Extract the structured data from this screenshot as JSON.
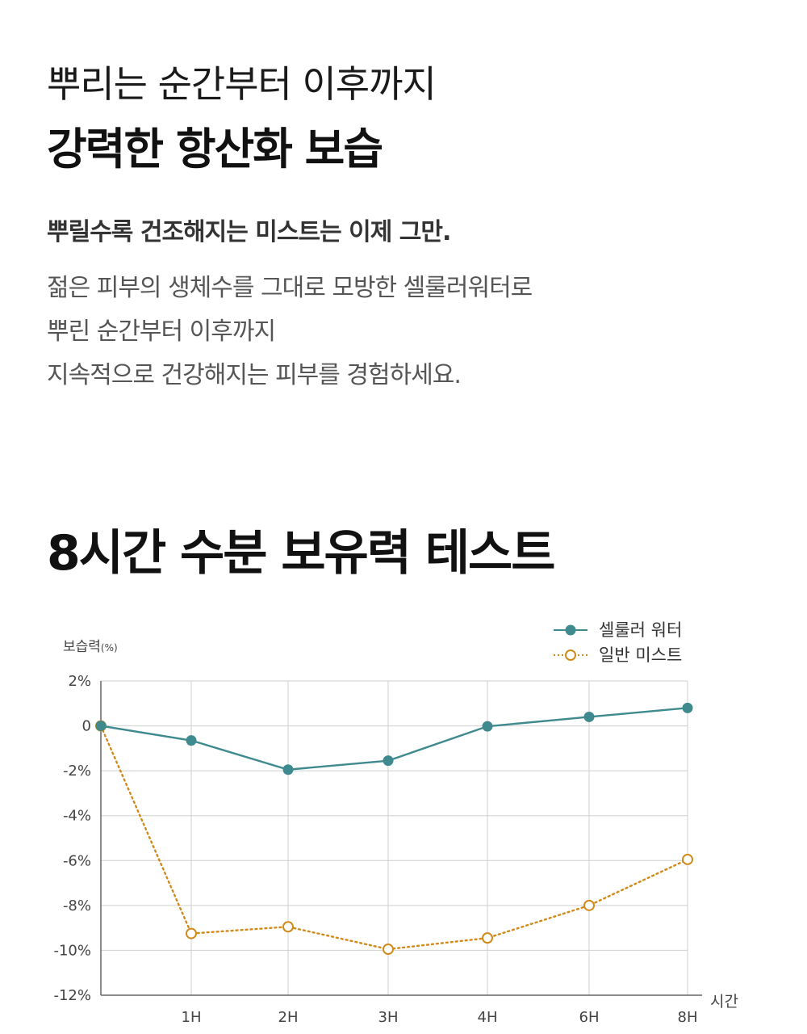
{
  "hero": {
    "subtitle": "뿌리는 순간부터 이후까지",
    "title": "강력한 항산화 보습"
  },
  "intro": {
    "lead": "뿌릴수록 건조해지는 미스트는 이제 그만.",
    "lines": [
      "젊은 피부의 생체수를 그대로 모방한 셀룰러워터로",
      "뿌린 순간부터 이후까지",
      "지속적으로 건강해지는 피부를 경험하세요."
    ]
  },
  "section": {
    "title": "8시간 수분 보유력 테스트"
  },
  "chart_data": {
    "type": "line",
    "ylabel": "보습력",
    "ylabel_unit": "(%)",
    "xlabel": "시간",
    "ylim": [
      -12,
      2
    ],
    "yticks": [
      "2%",
      "0",
      "-2%",
      "-4%",
      "-6%",
      "-8%",
      "-10%",
      "-12%"
    ],
    "ytick_values": [
      2,
      0,
      -2,
      -4,
      -6,
      -8,
      -10,
      -12
    ],
    "x_ticks": [
      "1H",
      "2H",
      "3H",
      "4H",
      "6H",
      "8H"
    ],
    "grid": true,
    "legend_position": "top-right",
    "series": [
      {
        "name": "셀룰러 워터",
        "color": "#3e8a8e",
        "style": "solid",
        "marker": "filled-circle",
        "points": [
          {
            "x": "0",
            "y": 0
          },
          {
            "x": "1H",
            "y": -0.65
          },
          {
            "x": "2H",
            "y": -1.95
          },
          {
            "x": "3H",
            "y": -1.55
          },
          {
            "x": "4H",
            "y": -0.02
          },
          {
            "x": "6H",
            "y": 0.4
          },
          {
            "x": "8H",
            "y": 0.8
          }
        ]
      },
      {
        "name": "일반 미스트",
        "color": "#d08a1a",
        "style": "dotted",
        "marker": "hollow-circle",
        "points": [
          {
            "x": "0",
            "y": 0
          },
          {
            "x": "1H",
            "y": -9.25
          },
          {
            "x": "2H",
            "y": -8.95
          },
          {
            "x": "3H",
            "y": -9.95
          },
          {
            "x": "4H",
            "y": -9.45
          },
          {
            "x": "6H",
            "y": -8.0
          },
          {
            "x": "8H",
            "y": -5.95
          }
        ]
      }
    ]
  }
}
